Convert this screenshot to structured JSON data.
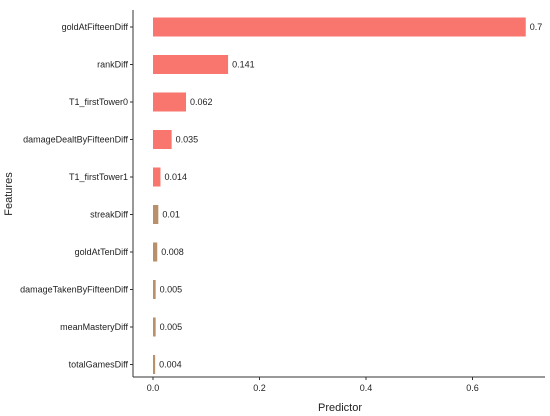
{
  "chart_data": {
    "type": "bar",
    "orientation": "horizontal",
    "xlabel": "Predictor",
    "ylabel": "Features",
    "xlim": [
      0,
      0.72
    ],
    "xticks": [
      "0.0",
      "0.2",
      "0.4",
      "0.6"
    ],
    "xtick_values": [
      0,
      0.2,
      0.4,
      0.6
    ],
    "grid": false,
    "bar_color": "#f8766d",
    "small_bar_color": "#b8906a",
    "categories": [
      "goldAtFifteenDiff",
      "rankDiff",
      "T1_firstTower0",
      "damageDealtByFifteenDiff",
      "T1_firstTower1",
      "streakDiff",
      "goldAtTenDiff",
      "damageTakenByFifteenDiff",
      "meanMasteryDiff",
      "totalGamesDiff"
    ],
    "values": [
      0.7,
      0.141,
      0.062,
      0.035,
      0.014,
      0.01,
      0.008,
      0.005,
      0.005,
      0.004
    ],
    "value_labels": [
      "0.7",
      "0.141",
      "0.062",
      "0.035",
      "0.014",
      "0.01",
      "0.008",
      "0.005",
      "0.005",
      "0.004"
    ]
  }
}
